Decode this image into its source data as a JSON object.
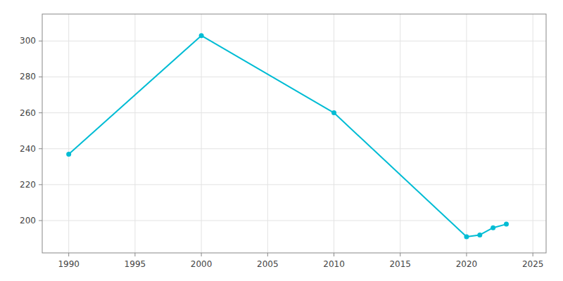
{
  "chart_data": {
    "type": "line",
    "x": [
      1990,
      2000,
      2010,
      2020,
      2021,
      2022,
      2023
    ],
    "values": [
      237,
      303,
      260,
      191,
      192,
      196,
      198
    ],
    "color": "#00BCD4",
    "marker": "circle",
    "xlim": [
      1988,
      2026
    ],
    "ylim": [
      182,
      315
    ],
    "xticks": [
      1990,
      1995,
      2000,
      2005,
      2010,
      2015,
      2020,
      2025
    ],
    "yticks": [
      200,
      220,
      240,
      260,
      280,
      300
    ],
    "grid": true
  }
}
